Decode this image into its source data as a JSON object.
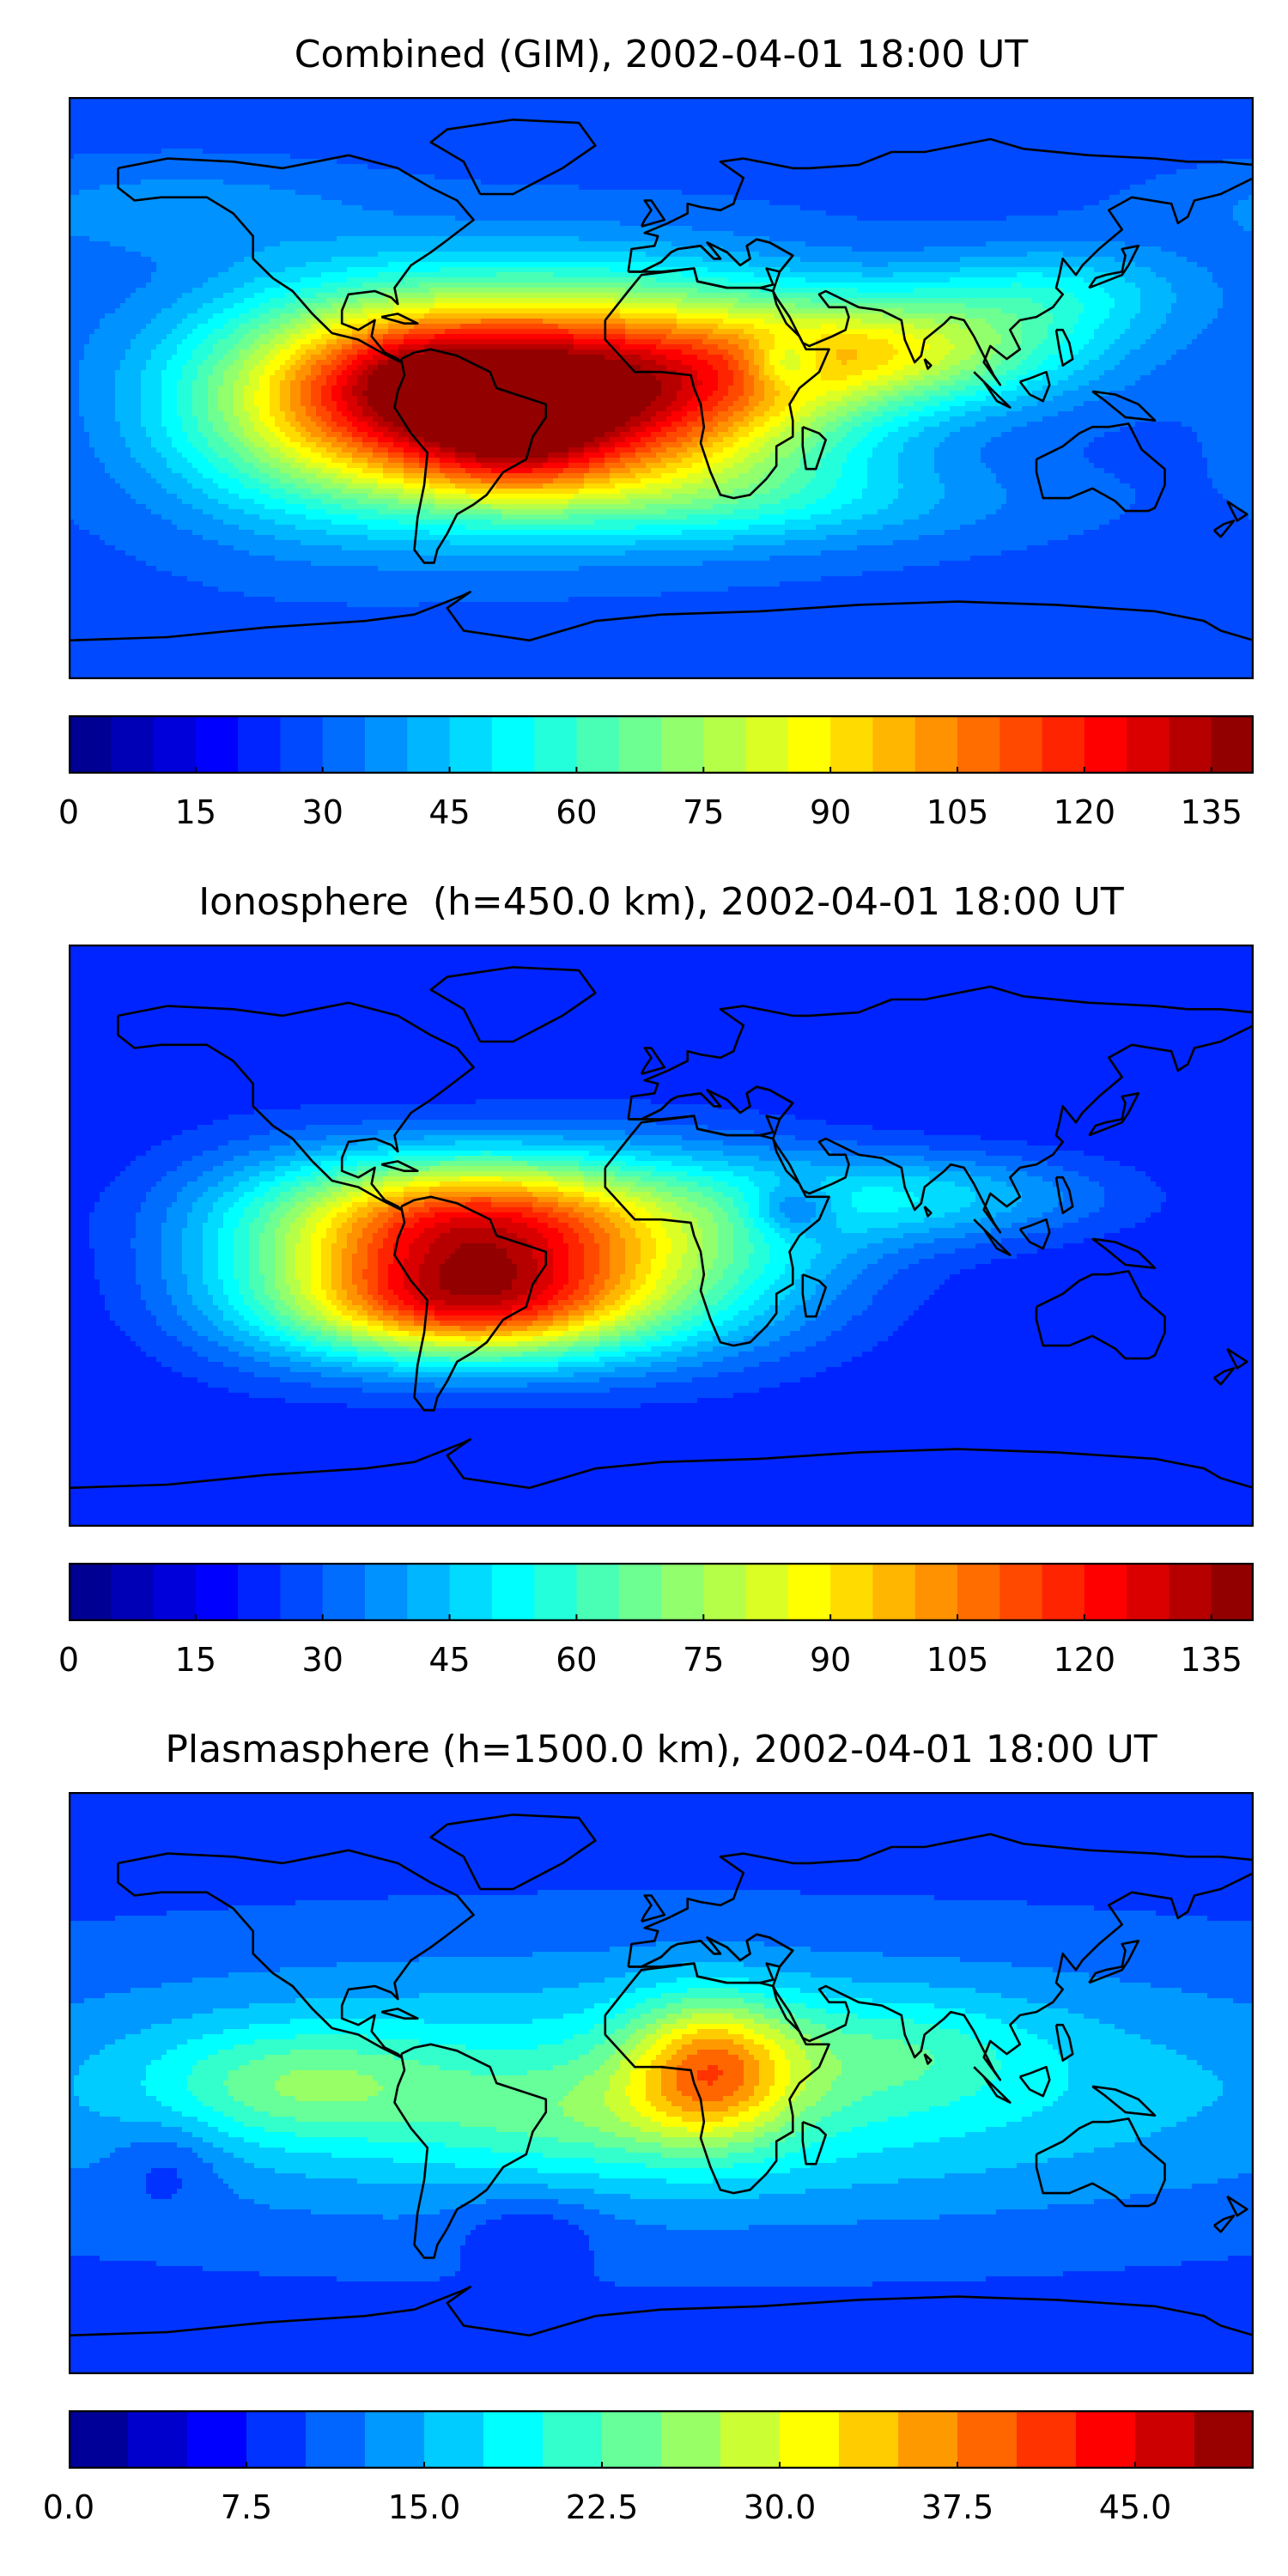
{
  "panels": [
    {
      "title": "Combined (GIM), 2002-04-01 18:00 UT",
      "colorbar": {
        "min": 0,
        "max": 140,
        "levels": 28,
        "ticks": [
          "0",
          "15",
          "30",
          "45",
          "60",
          "75",
          "90",
          "105",
          "120",
          "135"
        ],
        "tick_values": [
          0,
          15,
          30,
          45,
          60,
          75,
          90,
          105,
          120,
          135
        ]
      },
      "field": {
        "background": 28,
        "blobs": [
          {
            "lon": -55,
            "lat": -2,
            "sx": 45,
            "sy": 22,
            "amp": 105
          },
          {
            "lon": -45,
            "lat": -20,
            "sx": 20,
            "sy": 10,
            "amp": 20
          },
          {
            "lon": -75,
            "lat": 5,
            "sx": 18,
            "sy": 10,
            "amp": 10
          },
          {
            "lon": 10,
            "lat": 0,
            "sx": 40,
            "sy": 22,
            "amp": 55
          },
          {
            "lon": 75,
            "lat": 12,
            "sx": 38,
            "sy": 12,
            "amp": 45
          },
          {
            "lon": 120,
            "lat": 30,
            "sx": 30,
            "sy": 10,
            "amp": 20
          },
          {
            "lon": -110,
            "lat": -5,
            "sx": 35,
            "sy": 25,
            "amp": 25
          },
          {
            "lon": 30,
            "lat": -35,
            "sx": 55,
            "sy": 10,
            "amp": 15
          },
          {
            "lon": -150,
            "lat": 55,
            "sx": 40,
            "sy": 10,
            "amp": 10
          },
          {
            "lon": 38,
            "lat": 8,
            "sx": 8,
            "sy": 6,
            "amp": -22
          }
        ]
      }
    },
    {
      "title": "Ionosphere  (h=450.0 km), 2002-04-01 18:00 UT",
      "colorbar": {
        "min": 0,
        "max": 140,
        "levels": 28,
        "ticks": [
          "0",
          "15",
          "30",
          "45",
          "60",
          "75",
          "90",
          "105",
          "120",
          "135"
        ],
        "tick_values": [
          0,
          15,
          30,
          45,
          60,
          75,
          90,
          105,
          120,
          135
        ]
      },
      "field": {
        "background": 20,
        "blobs": [
          {
            "lon": -60,
            "lat": 5,
            "sx": 40,
            "sy": 14,
            "amp": 70
          },
          {
            "lon": -60,
            "lat": -22,
            "sx": 38,
            "sy": 12,
            "amp": 70
          },
          {
            "lon": -60,
            "lat": -8,
            "sx": 38,
            "sy": 20,
            "amp": 25
          },
          {
            "lon": 5,
            "lat": -5,
            "sx": 40,
            "sy": 22,
            "amp": 35
          },
          {
            "lon": 80,
            "lat": 12,
            "sx": 40,
            "sy": 10,
            "amp": 25
          },
          {
            "lon": -120,
            "lat": -5,
            "sx": 30,
            "sy": 25,
            "amp": 15
          },
          {
            "lon": 40,
            "lat": 8,
            "sx": 10,
            "sy": 6,
            "amp": -20
          }
        ]
      }
    },
    {
      "title": "Plasmasphere (h=1500.0 km), 2002-04-01 18:00 UT",
      "colorbar": {
        "min": 0,
        "max": 50,
        "levels": 20,
        "ticks": [
          "0.0",
          "7.5",
          "15.0",
          "22.5",
          "30.0",
          "37.5",
          "45.0"
        ],
        "tick_values": [
          0,
          7.5,
          15,
          22.5,
          30,
          37.5,
          45
        ]
      },
      "field": {
        "background": 9,
        "blobs": [
          {
            "lon": 0,
            "lat": -2,
            "sx": 150,
            "sy": 28,
            "amp": 11
          },
          {
            "lon": 15,
            "lat": 5,
            "sx": 18,
            "sy": 15,
            "amp": 18
          },
          {
            "lon": -110,
            "lat": 0,
            "sx": 30,
            "sy": 12,
            "amp": 8
          },
          {
            "lon": 70,
            "lat": 10,
            "sx": 30,
            "sy": 12,
            "amp": 5
          },
          {
            "lon": -20,
            "lat": -10,
            "sx": 40,
            "sy": 12,
            "amp": 5
          },
          {
            "lon": -150,
            "lat": -25,
            "sx": 12,
            "sy": 10,
            "amp": -4
          },
          {
            "lon": -40,
            "lat": -45,
            "sx": 15,
            "sy": 8,
            "amp": -4
          }
        ]
      }
    }
  ]
}
